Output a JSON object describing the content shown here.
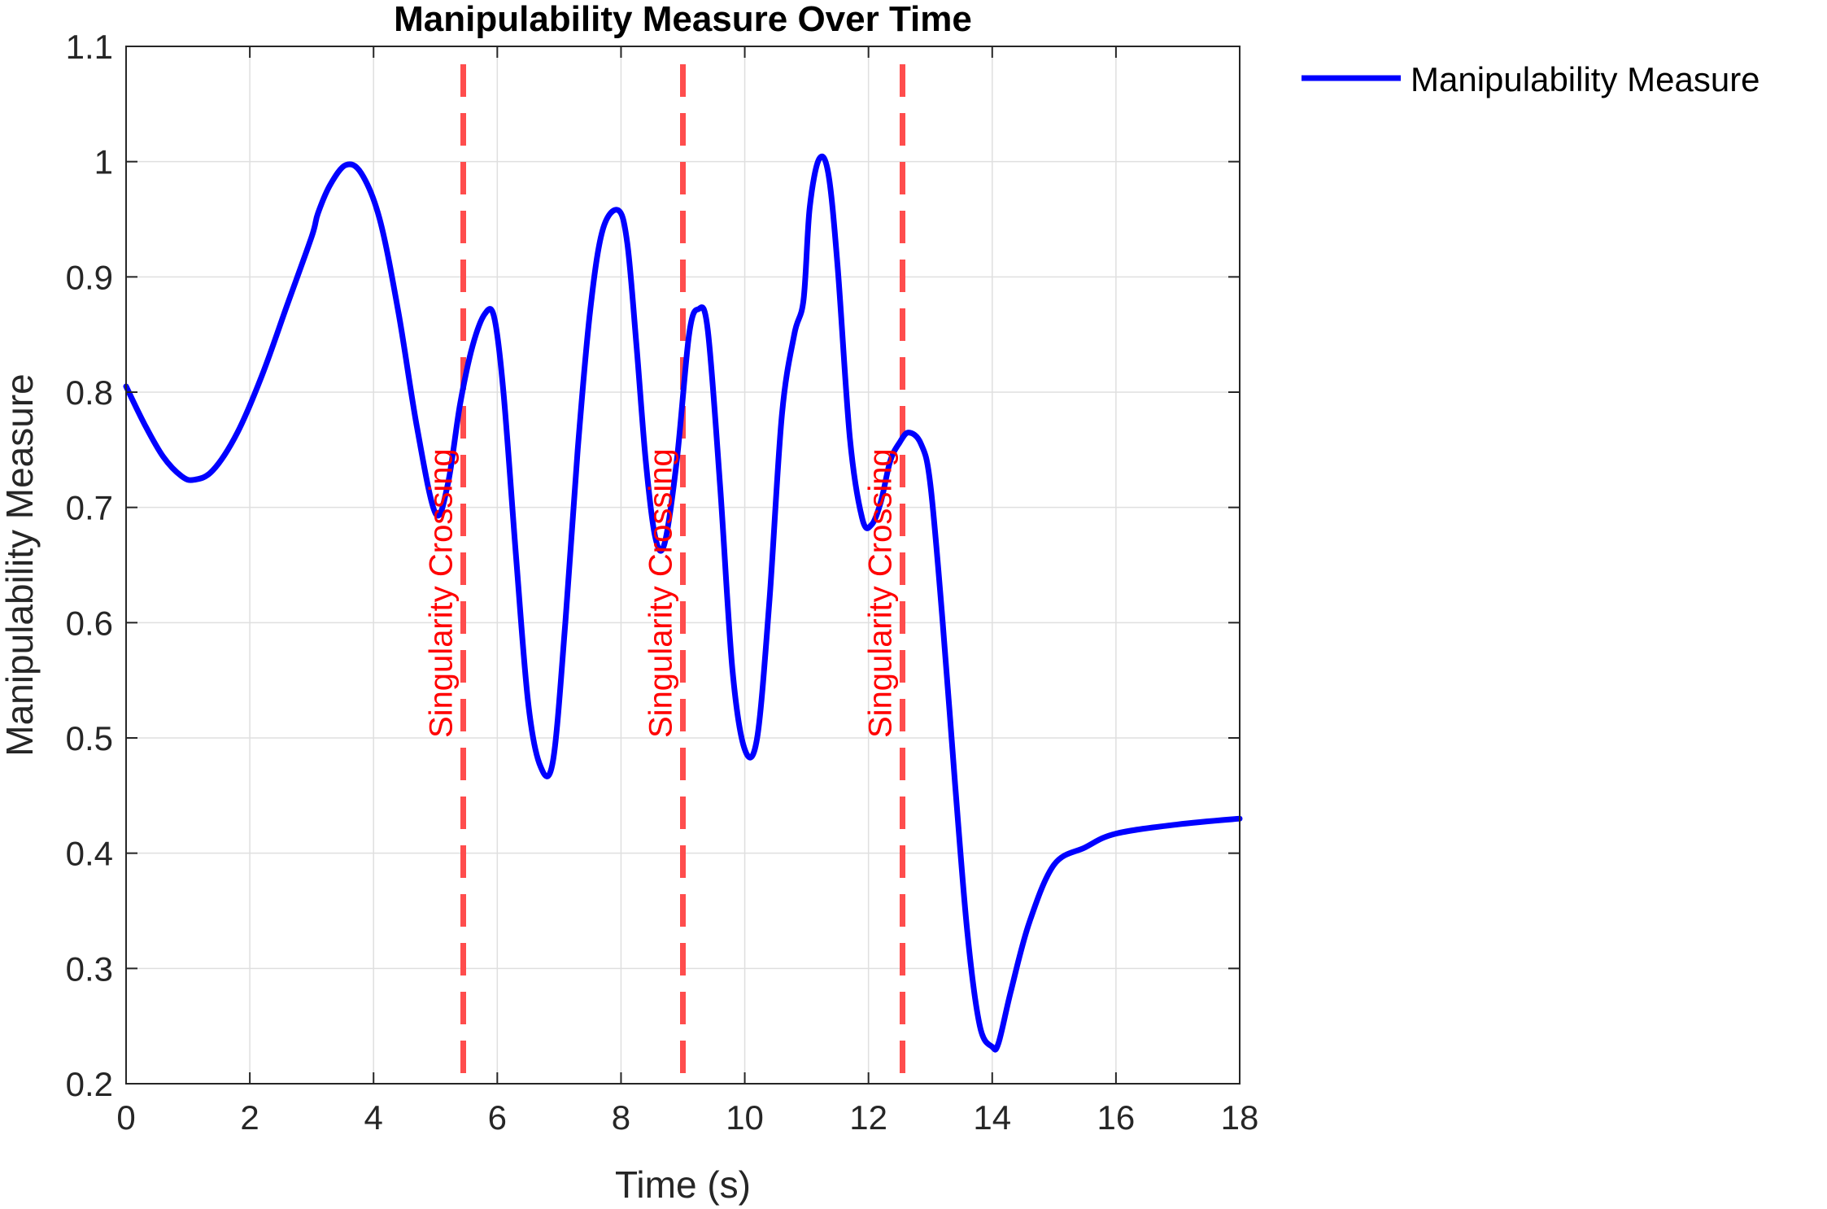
{
  "chart_data": {
    "type": "line",
    "title": "Manipulability Measure Over Time",
    "xlabel": "Time (s)",
    "ylabel": "Manipulability Measure",
    "xlim": [
      0,
      18
    ],
    "ylim": [
      0.2,
      1.1
    ],
    "xticks": [
      0,
      2,
      4,
      6,
      8,
      10,
      12,
      14,
      16,
      18
    ],
    "xtick_labels": [
      "0",
      "2",
      "4",
      "6",
      "8",
      "10",
      "12",
      "14",
      "16",
      "18"
    ],
    "yticks": [
      0.2,
      0.3,
      0.4,
      0.5,
      0.6,
      0.7,
      0.8,
      0.9,
      1.0,
      1.1
    ],
    "ytick_labels": [
      "0.2",
      "0.3",
      "0.4",
      "0.5",
      "0.6",
      "0.7",
      "0.8",
      "0.9",
      "1",
      "1.1"
    ],
    "grid": true,
    "legend_position": "outside-top-right",
    "series": [
      {
        "name": "Manipulability Measure",
        "color": "#0000ff",
        "x": [
          0,
          0.3,
          0.6,
          0.9,
          1.1,
          1.4,
          1.8,
          2.2,
          2.6,
          3.0,
          3.1,
          3.3,
          3.55,
          3.8,
          4.1,
          4.4,
          4.7,
          5.0,
          5.2,
          5.4,
          5.6,
          5.8,
          5.95,
          6.1,
          6.3,
          6.5,
          6.7,
          6.9,
          7.1,
          7.3,
          7.5,
          7.7,
          7.95,
          8.1,
          8.25,
          8.4,
          8.55,
          8.7,
          8.9,
          9.1,
          9.25,
          9.4,
          9.6,
          9.8,
          10.0,
          10.2,
          10.4,
          10.6,
          10.8,
          10.95,
          11.05,
          11.2,
          11.35,
          11.5,
          11.7,
          11.9,
          12.05,
          12.2,
          12.35,
          12.5,
          12.65,
          12.85,
          13.0,
          13.2,
          13.4,
          13.6,
          13.8,
          14.0,
          14.1,
          14.3,
          14.6,
          15.0,
          15.5,
          16.0,
          17.0,
          18.0
        ],
        "y": [
          0.805,
          0.772,
          0.744,
          0.727,
          0.724,
          0.732,
          0.765,
          0.815,
          0.875,
          0.935,
          0.955,
          0.98,
          0.997,
          0.99,
          0.95,
          0.87,
          0.77,
          0.695,
          0.72,
          0.79,
          0.84,
          0.868,
          0.865,
          0.8,
          0.66,
          0.53,
          0.475,
          0.48,
          0.6,
          0.75,
          0.87,
          0.94,
          0.958,
          0.93,
          0.84,
          0.74,
          0.675,
          0.668,
          0.74,
          0.85,
          0.872,
          0.855,
          0.72,
          0.56,
          0.49,
          0.5,
          0.62,
          0.78,
          0.85,
          0.88,
          0.96,
          1.002,
          0.99,
          0.91,
          0.76,
          0.69,
          0.685,
          0.705,
          0.74,
          0.756,
          0.765,
          0.755,
          0.72,
          0.6,
          0.46,
          0.33,
          0.25,
          0.232,
          0.235,
          0.28,
          0.34,
          0.39,
          0.405,
          0.417,
          0.425,
          0.43
        ]
      }
    ],
    "vertical_lines": [
      {
        "x": 5.45,
        "label": "Singularity Crossing",
        "color": "#ff4d4d"
      },
      {
        "x": 9.0,
        "label": "Singularity Crossing",
        "color": "#ff4d4d"
      },
      {
        "x": 12.55,
        "label": "Singularity Crossing",
        "color": "#ff4d4d"
      }
    ],
    "annotation_y": 0.5
  }
}
